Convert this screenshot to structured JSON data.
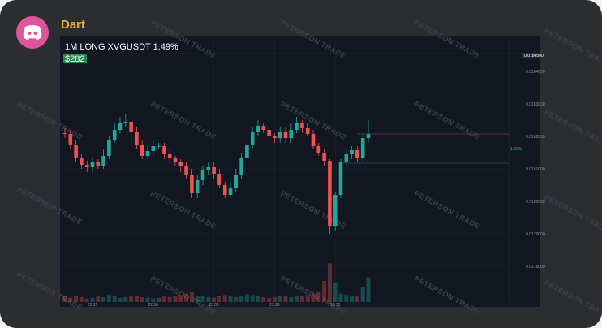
{
  "header": {
    "name": "Dart"
  },
  "chart_data": {
    "type": "candlestick",
    "title": "1M LONG XVGUSDT 1.49%",
    "badge": "$282",
    "watermark": "PETERSON TRADE",
    "open": [
      0.01821,
      0.0182075,
      0.018175,
      0.0181325,
      0.0181125,
      0.018105,
      0.01812,
      0.01811,
      0.01814,
      0.01819,
      0.01822,
      0.01824,
      0.018245,
      0.018215,
      0.018175,
      0.01814,
      0.018155,
      0.01817,
      0.01817,
      0.018145,
      0.0181325,
      0.01812,
      0.0181075,
      0.0180825,
      0.018025,
      0.018065,
      0.018095,
      0.018105,
      0.018085,
      0.01805,
      0.01802,
      0.01804,
      0.0180825,
      0.0181325,
      0.018175,
      0.018215,
      0.0182325,
      0.01822,
      0.0182,
      0.018195,
      0.018215,
      0.018195,
      0.01822,
      0.01824,
      0.018225,
      0.0182075,
      0.01817,
      0.01815,
      0.018125,
      0.017925,
      0.01802,
      0.01812,
      0.018145,
      0.0181575,
      0.0181325,
      0.018195
    ],
    "high": [
      0.018225,
      0.01822,
      0.01819,
      0.018145,
      0.018125,
      0.018135,
      0.01813,
      0.01816,
      0.0182,
      0.01824,
      0.01826,
      0.01827,
      0.01826,
      0.01823,
      0.01819,
      0.01817,
      0.01819,
      0.01818,
      0.01818,
      0.01816,
      0.01814,
      0.01813,
      0.01812,
      0.0181,
      0.01808,
      0.01811,
      0.01812,
      0.01812,
      0.0181,
      0.01806,
      0.01806,
      0.0181,
      0.01815,
      0.01819,
      0.01823,
      0.01825,
      0.01824,
      0.01823,
      0.01821,
      0.01823,
      0.01823,
      0.01824,
      0.01826,
      0.01825,
      0.01824,
      0.01822,
      0.01818,
      0.01816,
      0.01813,
      0.01803,
      0.01813,
      0.01816,
      0.01817,
      0.01817,
      0.01821,
      0.01825
    ],
    "low": [
      0.018195,
      0.01816,
      0.01812,
      0.0181,
      0.01809,
      0.01809,
      0.0181,
      0.0181,
      0.01813,
      0.01818,
      0.01821,
      0.01823,
      0.0182,
      0.01816,
      0.01813,
      0.01813,
      0.01814,
      0.01816,
      0.01813,
      0.01812,
      0.01811,
      0.01809,
      0.01807,
      0.01801,
      0.01801,
      0.01805,
      0.01808,
      0.01807,
      0.01804,
      0.01801,
      0.01801,
      0.01803,
      0.01807,
      0.01812,
      0.01816,
      0.0182,
      0.01821,
      0.01819,
      0.01818,
      0.01818,
      0.01818,
      0.01818,
      0.01821,
      0.01821,
      0.0182,
      0.01816,
      0.01814,
      0.01811,
      0.0179,
      0.01791,
      0.01801,
      0.01811,
      0.01813,
      0.01812,
      0.01812,
      0.01818
    ],
    "close": [
      0.0182075,
      0.018175,
      0.0181325,
      0.0181125,
      0.018105,
      0.01812,
      0.01811,
      0.01814,
      0.01819,
      0.01822,
      0.01824,
      0.018245,
      0.018215,
      0.018175,
      0.01814,
      0.018155,
      0.01817,
      0.01817,
      0.018145,
      0.0181325,
      0.01812,
      0.0181075,
      0.0180825,
      0.018025,
      0.018065,
      0.018095,
      0.018105,
      0.018085,
      0.01805,
      0.01802,
      0.01804,
      0.0180825,
      0.0181325,
      0.018175,
      0.018215,
      0.0182325,
      0.01822,
      0.0182,
      0.018195,
      0.018215,
      0.018195,
      0.01822,
      0.01824,
      0.018225,
      0.0182075,
      0.01817,
      0.01815,
      0.018125,
      0.017925,
      0.01802,
      0.01812,
      0.018145,
      0.0181575,
      0.0181325,
      0.018195,
      0.0182075
    ],
    "volume": [
      8,
      6,
      9,
      7,
      5,
      6,
      8,
      7,
      10,
      9,
      6,
      7,
      8,
      9,
      7,
      6,
      5,
      6,
      8,
      7,
      9,
      10,
      12,
      14,
      9,
      8,
      7,
      6,
      9,
      10,
      8,
      7,
      9,
      11,
      10,
      8,
      7,
      6,
      7,
      8,
      9,
      7,
      8,
      9,
      10,
      12,
      14,
      30,
      55,
      28,
      12,
      10,
      9,
      8,
      22,
      35
    ],
    "vlim": [
      0,
      60
    ],
    "up_color": "#26a69a",
    "down_color": "#ef5350",
    "ylim": [
      0.0177,
      0.0185
    ],
    "yticks": [
      {
        "value": 0.0184,
        "label": "0.0184000"
      },
      {
        "value": 0.0183,
        "label": "0.0183000"
      },
      {
        "value": 0.0182,
        "label": "0.0182000"
      },
      {
        "value": 0.0181,
        "label": "0.0181000"
      },
      {
        "value": 0.018,
        "label": "0.0180000"
      },
      {
        "value": 0.0179,
        "label": "0.0179000"
      },
      {
        "value": 0.0178,
        "label": "0.0178000"
      }
    ],
    "top_tag": {
      "value": 0.01845,
      "label": "0.0184500"
    },
    "price_line": 0.0182075,
    "entry_line": 0.0181175,
    "entry_label": "1.49%",
    "xticks": [
      {
        "value": 5,
        "label": "22:35"
      },
      {
        "value": 16,
        "label": "22:50"
      },
      {
        "value": 27,
        "label": "23:05"
      },
      {
        "value": 38,
        "label": "23:20"
      },
      {
        "value": 49,
        "label": "23:35"
      }
    ],
    "grid": true
  }
}
